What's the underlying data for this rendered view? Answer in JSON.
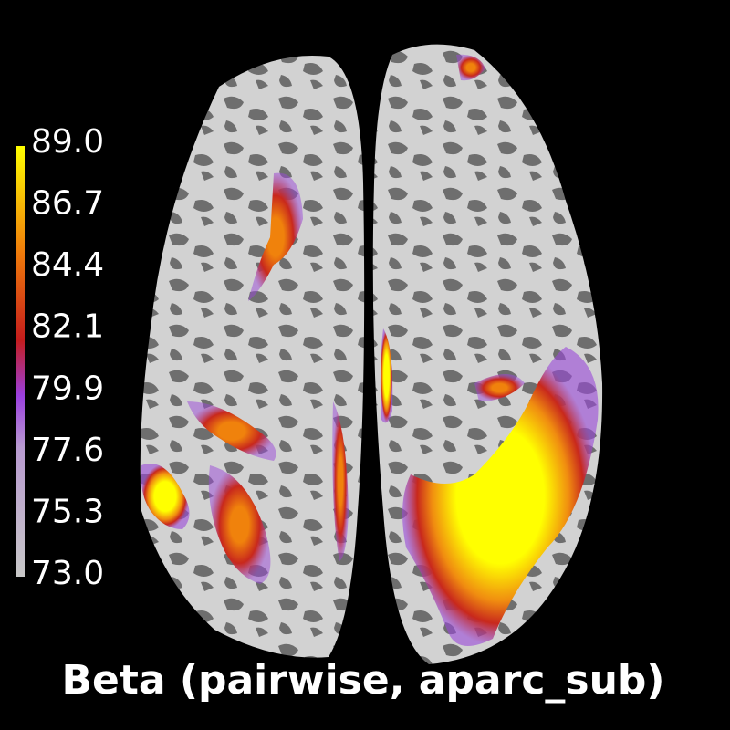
{
  "colorbar": {
    "ticks": [
      "89.0",
      "86.7",
      "84.4",
      "82.1",
      "79.9",
      "77.6",
      "75.3",
      "73.0"
    ]
  },
  "title": "Beta (pairwise, aparc_sub)"
}
